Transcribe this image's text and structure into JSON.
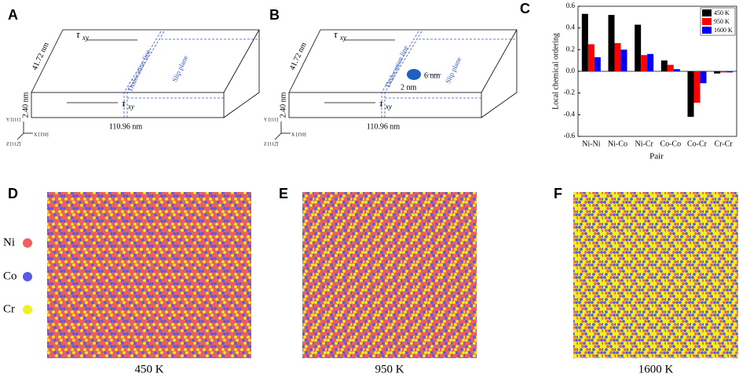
{
  "chart_data": {
    "type": "bar",
    "y_label": "Local chemical ordering",
    "x_label": "Pair",
    "categories": [
      "Ni-Ni",
      "Ni-Co",
      "Ni-Cr",
      "Co-Co",
      "Co-Cr",
      "Cr-Cr"
    ],
    "series": [
      {
        "name": "450 K",
        "color": "#000000",
        "values": [
          0.53,
          0.52,
          0.43,
          0.1,
          -0.42,
          -0.02
        ]
      },
      {
        "name": "950 K",
        "color": "#ff0000",
        "values": [
          0.25,
          0.26,
          0.15,
          0.06,
          -0.29,
          -0.01
        ]
      },
      {
        "name": "1600 K",
        "color": "#0000ff",
        "values": [
          0.13,
          0.2,
          0.16,
          0.02,
          -0.11,
          -0.01
        ]
      }
    ],
    "ylim": [
      -0.6,
      0.6
    ],
    "yticks": [
      -0.6,
      -0.4,
      -0.2,
      {
        "value": 0,
        "label": "0.0"
      },
      0.2,
      0.4,
      0.6
    ],
    "legend": "upper right"
  },
  "figure": {
    "panels": [
      "A",
      "B",
      "C",
      "D",
      "E",
      "F"
    ],
    "box_a": {
      "tau": "τ",
      "tau_sub": "xy",
      "depth": "41.72 nm",
      "height": "2.40 nm",
      "length": "110.96 nm",
      "dislocation": "Dislocation line",
      "slip": "Slip plane",
      "axis_y": "Y [111]",
      "axis_x": "X [1̄10]",
      "axis_z": "Z [112̄]"
    },
    "box_b": {
      "tau": "τ",
      "tau_sub": "xy",
      "depth": "41.72 nm",
      "height": "2.40 nm",
      "length": "110.96 nm",
      "dislocation": "Dislocation line",
      "slip": "Slip plane",
      "void_width": "2 nm",
      "void_height": "6 nm",
      "axis_y": "Y [111]",
      "axis_x": "X [1̄10]",
      "axis_z": "Z [112̄]"
    },
    "legend": [
      "Ni",
      "Co",
      "Cr"
    ],
    "captions": [
      "450 K",
      "950 K",
      "1600 K"
    ]
  }
}
